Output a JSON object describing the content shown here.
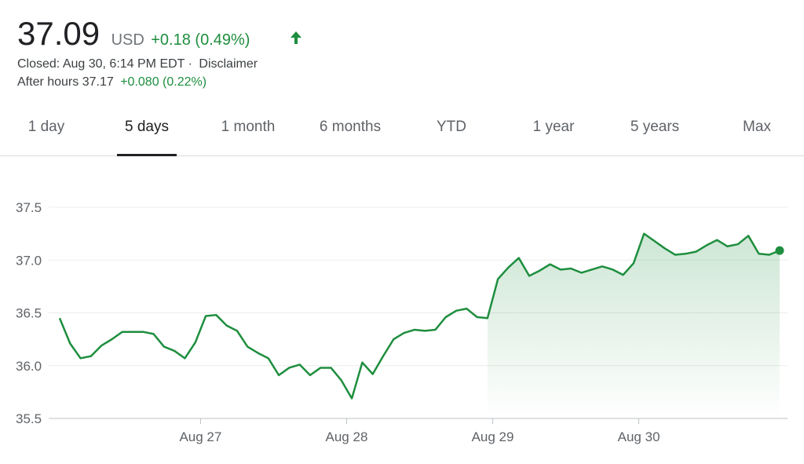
{
  "header": {
    "price": "37.09",
    "currency": "USD",
    "change": "+0.18 (0.49%)",
    "closed": "Closed: Aug 30, 6:14 PM EDT ·",
    "disclaimer": "Disclaimer",
    "after_hours": "After hours 37.17",
    "after_hours_change": "+0.080 (0.22%)"
  },
  "tabs": [
    "1 day",
    "5 days",
    "1 month",
    "6 months",
    "YTD",
    "1 year",
    "5 years",
    "Max"
  ],
  "selected_tab": 1,
  "chart_data": {
    "type": "line",
    "color": "#1e8e3e",
    "grid": true,
    "values": [
      36.45,
      36.21,
      36.07,
      36.09,
      36.19,
      36.25,
      36.32,
      36.32,
      36.32,
      36.3,
      36.18,
      36.14,
      36.07,
      36.22,
      36.47,
      36.48,
      36.38,
      36.33,
      36.18,
      36.12,
      36.07,
      35.91,
      35.98,
      36.01,
      35.91,
      35.98,
      35.98,
      35.86,
      35.69,
      36.03,
      35.92,
      36.09,
      36.25,
      36.31,
      36.34,
      36.33,
      36.34,
      36.46,
      36.52,
      36.54,
      36.46,
      36.45,
      36.82,
      36.93,
      37.02,
      36.85,
      36.9,
      36.96,
      36.91,
      36.92,
      36.88,
      36.91,
      36.94,
      36.91,
      36.86,
      36.97,
      37.25,
      37.18,
      37.11,
      37.05,
      37.06,
      37.08,
      37.14,
      37.19,
      37.13,
      37.15,
      37.23,
      37.06,
      37.05,
      37.09
    ],
    "xlim": [
      0,
      69
    ],
    "xticks": [
      {
        "value": 13.5,
        "label": "Aug 27"
      },
      {
        "value": 27.5,
        "label": "Aug 28"
      },
      {
        "value": 41.5,
        "label": "Aug 29"
      },
      {
        "value": 55.5,
        "label": "Aug 30"
      }
    ],
    "ylim": [
      35.5,
      37.5
    ],
    "yticks": [
      35.5,
      {
        "value": 36,
        "label": "36.0"
      },
      36.5,
      {
        "value": 37,
        "label": "37.0"
      },
      37.5
    ]
  }
}
